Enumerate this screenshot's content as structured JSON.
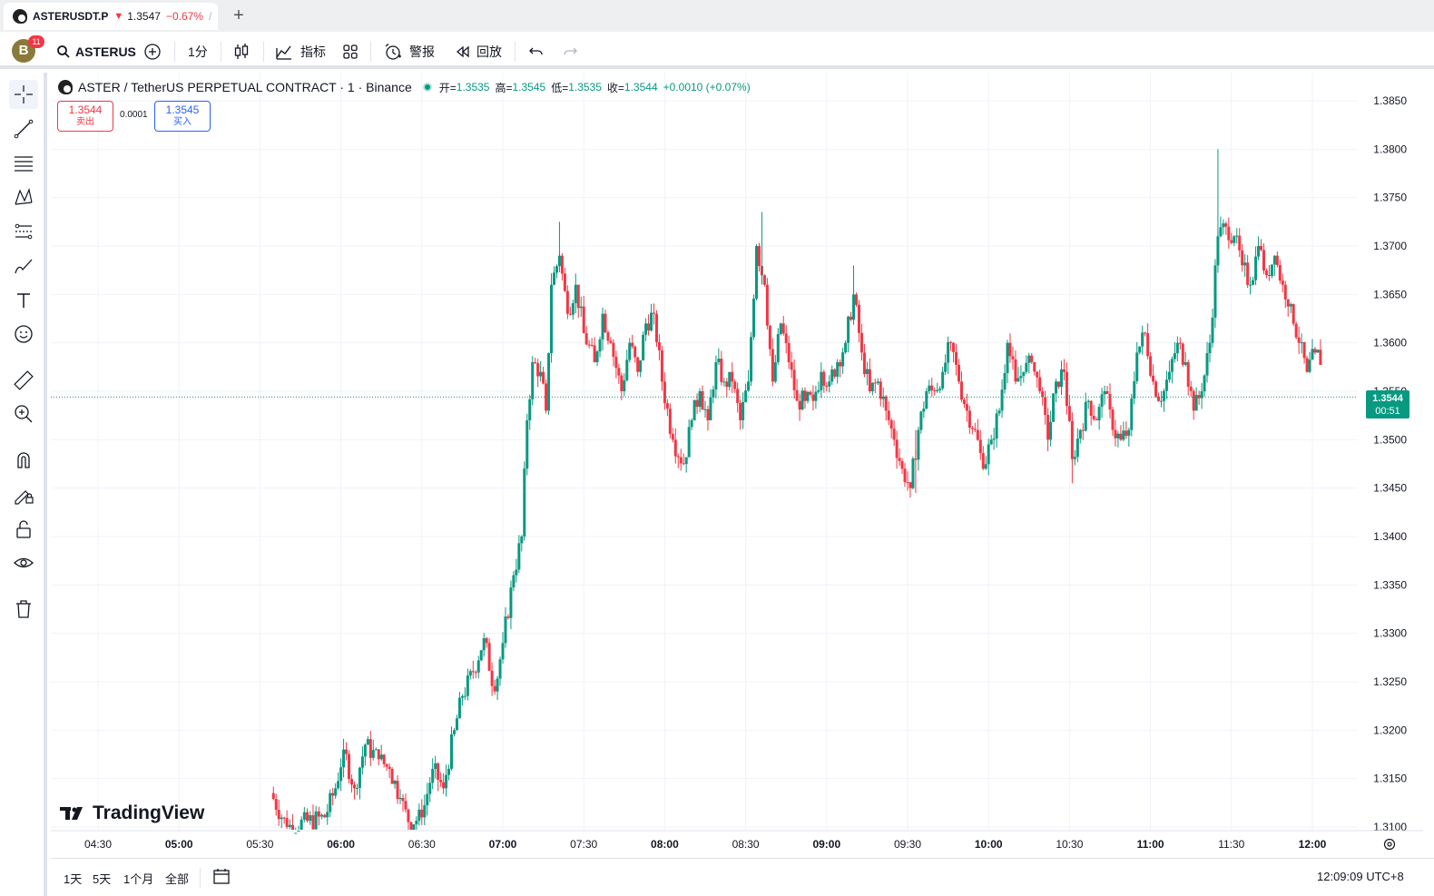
{
  "tab": {
    "symbol": "ASTERUSDT.P",
    "arrow": "▼",
    "price": "1.3547",
    "change": "−0.67%",
    "separator": "/",
    "new_tab": "+"
  },
  "toolbar": {
    "avatar_letter": "B",
    "notification_count": "11",
    "search_symbol": "ASTERUS",
    "interval": "1分",
    "indicators_label": "指标",
    "alert_label": "警报",
    "replay_label": "回放"
  },
  "legend": {
    "title": "ASTER / TetherUS PERPETUAL CONTRACT · 1 · Binance",
    "open_label": "开=",
    "open": "1.3535",
    "high_label": "高=",
    "high": "1.3545",
    "low_label": "低=",
    "low": "1.3535",
    "close_label": "收=",
    "close": "1.3544",
    "change": "+0.0010 (+0.07%)"
  },
  "trade": {
    "sell_price": "1.3544",
    "sell_label": "卖出",
    "spread": "0.0001",
    "buy_price": "1.3545",
    "buy_label": "买入"
  },
  "watermark": "TradingView",
  "price_tag": {
    "price": "1.3544",
    "countdown": "00:51"
  },
  "bottom": {
    "ranges": [
      "1天",
      "5天",
      "1个月",
      "全部"
    ],
    "time_utc": "12:09:09 UTC+8"
  },
  "colors": {
    "up": "#089981",
    "down": "#f23645",
    "grid": "#f0f3fa",
    "current_line": "#089981"
  },
  "icons": [
    "crosshair-icon",
    "trend-line-icon",
    "fib-lines-icon",
    "pattern-icon",
    "prediction-icon",
    "brush-icon",
    "text-icon",
    "emoji-icon",
    "ruler-icon",
    "zoom-in-icon",
    "magnet-icon",
    "lock-drawing-icon",
    "lock-icon",
    "eye-icon",
    "trash-icon",
    "search-icon",
    "add-icon",
    "candle-type-icon",
    "indicator-icon",
    "layout-icon",
    "alarm-icon",
    "replay-icon",
    "undo-icon",
    "redo-icon",
    "calendar-icon",
    "gear-icon"
  ],
  "chart_data": {
    "type": "candlestick",
    "y_ticks": [
      "1.3850",
      "1.3800",
      "1.3750",
      "1.3700",
      "1.3650",
      "1.3600",
      "1.3550",
      "1.3500",
      "1.3450",
      "1.3400",
      "1.3350",
      "1.3300",
      "1.3250",
      "1.3200",
      "1.3150",
      "1.3100"
    ],
    "x_ticks": [
      {
        "label": "04:30",
        "bold": false
      },
      {
        "label": "05:00",
        "bold": true
      },
      {
        "label": "05:30",
        "bold": false
      },
      {
        "label": "06:00",
        "bold": true
      },
      {
        "label": "06:30",
        "bold": false
      },
      {
        "label": "07:00",
        "bold": true
      },
      {
        "label": "07:30",
        "bold": false
      },
      {
        "label": "08:00",
        "bold": true
      },
      {
        "label": "08:30",
        "bold": false
      },
      {
        "label": "09:00",
        "bold": true
      },
      {
        "label": "09:30",
        "bold": false
      },
      {
        "label": "10:00",
        "bold": true
      },
      {
        "label": "10:30",
        "bold": false
      },
      {
        "label": "11:00",
        "bold": true
      },
      {
        "label": "11:30",
        "bold": false
      },
      {
        "label": "12:00",
        "bold": true
      }
    ],
    "ylim": [
      1.31,
      1.385
    ],
    "x_start": "04:30",
    "x_end": "12:00",
    "current_price": 1.3544,
    "series": [
      {
        "t": "05:34",
        "p": 1.3135
      },
      {
        "t": "05:40",
        "p": 1.31
      },
      {
        "t": "05:54",
        "p": 1.311
      },
      {
        "t": "05:58",
        "p": 1.314
      },
      {
        "t": "06:01",
        "p": 1.318
      },
      {
        "t": "06:05",
        "p": 1.314
      },
      {
        "t": "06:09",
        "p": 1.3185
      },
      {
        "t": "06:14",
        "p": 1.317
      },
      {
        "t": "06:18",
        "p": 1.316
      },
      {
        "t": "06:22",
        "p": 1.313
      },
      {
        "t": "06:25",
        "p": 1.3105
      },
      {
        "t": "06:30",
        "p": 1.311
      },
      {
        "t": "06:34",
        "p": 1.316
      },
      {
        "t": "06:38",
        "p": 1.314
      },
      {
        "t": "06:42",
        "p": 1.32
      },
      {
        "t": "06:45",
        "p": 1.3235
      },
      {
        "t": "06:49",
        "p": 1.326
      },
      {
        "t": "06:53",
        "p": 1.3295
      },
      {
        "t": "06:57",
        "p": 1.324
      },
      {
        "t": "07:00",
        "p": 1.329
      },
      {
        "t": "07:04",
        "p": 1.336
      },
      {
        "t": "07:07",
        "p": 1.34
      },
      {
        "t": "07:09",
        "p": 1.352
      },
      {
        "t": "07:11",
        "p": 1.358
      },
      {
        "t": "07:14",
        "p": 1.357
      },
      {
        "t": "07:16",
        "p": 1.353
      },
      {
        "t": "07:18",
        "p": 1.366
      },
      {
        "t": "07:21",
        "p": 1.369
      },
      {
        "t": "07:24",
        "p": 1.363
      },
      {
        "t": "07:27",
        "p": 1.366
      },
      {
        "t": "07:30",
        "p": 1.361
      },
      {
        "t": "07:34",
        "p": 1.358
      },
      {
        "t": "07:37",
        "p": 1.363
      },
      {
        "t": "07:40",
        "p": 1.36
      },
      {
        "t": "07:44",
        "p": 1.355
      },
      {
        "t": "07:47",
        "p": 1.36
      },
      {
        "t": "07:50",
        "p": 1.357
      },
      {
        "t": "07:53",
        "p": 1.362
      },
      {
        "t": "07:56",
        "p": 1.363
      },
      {
        "t": "07:59",
        "p": 1.356
      },
      {
        "t": "08:03",
        "p": 1.35
      },
      {
        "t": "08:07",
        "p": 1.3475
      },
      {
        "t": "08:10",
        "p": 1.352
      },
      {
        "t": "08:13",
        "p": 1.355
      },
      {
        "t": "08:16",
        "p": 1.352
      },
      {
        "t": "08:19",
        "p": 1.358
      },
      {
        "t": "08:22",
        "p": 1.356
      },
      {
        "t": "08:25",
        "p": 1.356
      },
      {
        "t": "08:28",
        "p": 1.352
      },
      {
        "t": "08:31",
        "p": 1.356
      },
      {
        "t": "08:34",
        "p": 1.37
      },
      {
        "t": "08:37",
        "p": 1.366
      },
      {
        "t": "08:40",
        "p": 1.356
      },
      {
        "t": "08:43",
        "p": 1.362
      },
      {
        "t": "08:46",
        "p": 1.358
      },
      {
        "t": "08:49",
        "p": 1.354
      },
      {
        "t": "08:52",
        "p": 1.354
      },
      {
        "t": "08:55",
        "p": 1.354
      },
      {
        "t": "08:58",
        "p": 1.357
      },
      {
        "t": "09:01",
        "p": 1.356
      },
      {
        "t": "09:04",
        "p": 1.358
      },
      {
        "t": "09:07",
        "p": 1.36
      },
      {
        "t": "09:10",
        "p": 1.365
      },
      {
        "t": "09:13",
        "p": 1.359
      },
      {
        "t": "09:16",
        "p": 1.355
      },
      {
        "t": "09:19",
        "p": 1.356
      },
      {
        "t": "09:22",
        "p": 1.353
      },
      {
        "t": "09:25",
        "p": 1.35
      },
      {
        "t": "09:28",
        "p": 1.347
      },
      {
        "t": "09:31",
        "p": 1.345
      },
      {
        "t": "09:34",
        "p": 1.351
      },
      {
        "t": "09:37",
        "p": 1.355
      },
      {
        "t": "09:40",
        "p": 1.355
      },
      {
        "t": "09:43",
        "p": 1.357
      },
      {
        "t": "09:46",
        "p": 1.36
      },
      {
        "t": "09:49",
        "p": 1.356
      },
      {
        "t": "09:52",
        "p": 1.353
      },
      {
        "t": "09:55",
        "p": 1.351
      },
      {
        "t": "09:58",
        "p": 1.347
      },
      {
        "t": "10:01",
        "p": 1.35
      },
      {
        "t": "10:04",
        "p": 1.353
      },
      {
        "t": "10:07",
        "p": 1.36
      },
      {
        "t": "10:10",
        "p": 1.356
      },
      {
        "t": "10:13",
        "p": 1.357
      },
      {
        "t": "10:16",
        "p": 1.358
      },
      {
        "t": "10:19",
        "p": 1.355
      },
      {
        "t": "10:22",
        "p": 1.35
      },
      {
        "t": "10:25",
        "p": 1.356
      },
      {
        "t": "10:28",
        "p": 1.357
      },
      {
        "t": "10:31",
        "p": 1.348
      },
      {
        "t": "10:34",
        "p": 1.351
      },
      {
        "t": "10:37",
        "p": 1.354
      },
      {
        "t": "10:40",
        "p": 1.352
      },
      {
        "t": "10:43",
        "p": 1.355
      },
      {
        "t": "10:46",
        "p": 1.351
      },
      {
        "t": "10:49",
        "p": 1.35
      },
      {
        "t": "10:52",
        "p": 1.351
      },
      {
        "t": "10:55",
        "p": 1.359
      },
      {
        "t": "10:58",
        "p": 1.361
      },
      {
        "t": "11:01",
        "p": 1.356
      },
      {
        "t": "11:04",
        "p": 1.354
      },
      {
        "t": "11:07",
        "p": 1.357
      },
      {
        "t": "11:10",
        "p": 1.36
      },
      {
        "t": "11:13",
        "p": 1.358
      },
      {
        "t": "11:16",
        "p": 1.353
      },
      {
        "t": "11:19",
        "p": 1.355
      },
      {
        "t": "11:22",
        "p": 1.36
      },
      {
        "t": "11:25",
        "p": 1.371
      },
      {
        "t": "11:28",
        "p": 1.372
      },
      {
        "t": "11:31",
        "p": 1.371
      },
      {
        "t": "11:34",
        "p": 1.368
      },
      {
        "t": "11:37",
        "p": 1.366
      },
      {
        "t": "11:40",
        "p": 1.37
      },
      {
        "t": "11:43",
        "p": 1.367
      },
      {
        "t": "11:46",
        "p": 1.369
      },
      {
        "t": "11:49",
        "p": 1.366
      },
      {
        "t": "11:52",
        "p": 1.364
      },
      {
        "t": "11:55",
        "p": 1.36
      },
      {
        "t": "11:58",
        "p": 1.357
      },
      {
        "t": "12:01",
        "p": 1.359
      },
      {
        "t": "12:04",
        "p": 1.358
      },
      {
        "t": "12:06",
        "p": 1.355
      },
      {
        "t": "12:08",
        "p": 1.354
      },
      {
        "t": "12:09",
        "p": 1.3544
      }
    ]
  }
}
